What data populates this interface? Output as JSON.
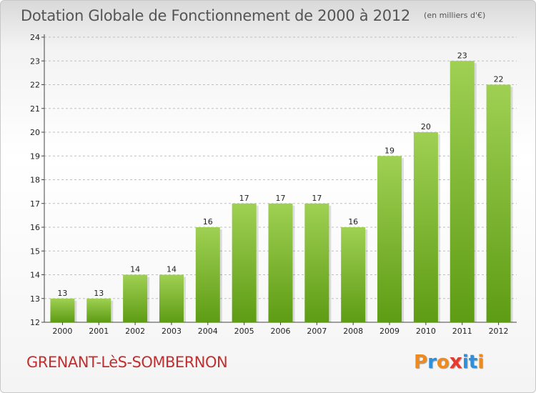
{
  "header": {
    "title": "Dotation Globale de Fonctionnement de 2000 à 2012",
    "subtitle": "(en milliers d'€)"
  },
  "footer": {
    "town": "GRENANT-LèS-SOMBERNON",
    "logo_letters": [
      "P",
      "r",
      "o",
      "x",
      "i",
      "t",
      "i"
    ],
    "logo_colors": [
      "#f08a1c",
      "#2f8fd8",
      "#f08a1c",
      "#e63a2e",
      "#2f8fd8",
      "#2f8fd8",
      "#f08a1c"
    ]
  },
  "colors": {
    "bar_top": "#9fd053",
    "bar_bottom": "#5e9c14",
    "grid": "#bfbfbf",
    "axis": "#444444",
    "text": "#222222"
  },
  "chart_data": {
    "type": "bar",
    "categories": [
      "2000",
      "2001",
      "2002",
      "2003",
      "2004",
      "2005",
      "2006",
      "2007",
      "2008",
      "2009",
      "2010",
      "2011",
      "2012"
    ],
    "values": [
      13,
      13,
      14,
      14,
      16,
      17,
      17,
      17,
      16,
      19,
      20,
      23,
      22
    ],
    "value_labels": [
      "13",
      "13",
      "14",
      "14",
      "16",
      "17",
      "17",
      "17",
      "16",
      "19",
      "20",
      "23",
      "22"
    ],
    "yticks": [
      "12",
      "13",
      "14",
      "15",
      "16",
      "17",
      "18",
      "19",
      "20",
      "21",
      "22",
      "23",
      "24"
    ],
    "ylim": [
      12,
      24
    ],
    "grid": true,
    "legend": "none",
    "xlabel": "",
    "ylabel": ""
  }
}
